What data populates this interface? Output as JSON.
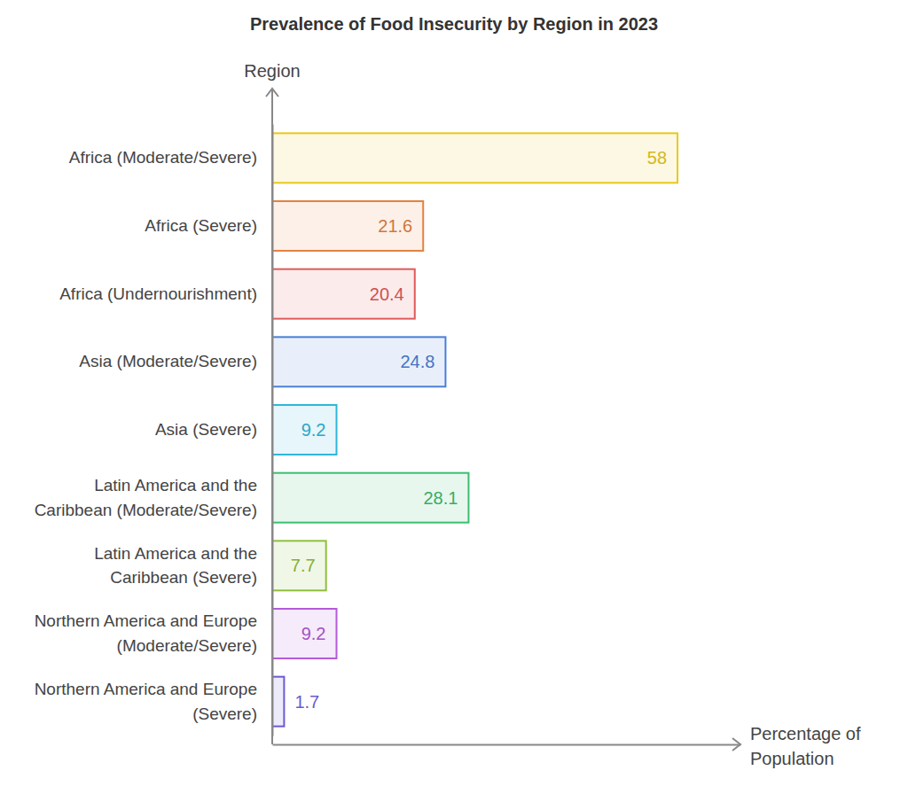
{
  "chart_data": {
    "type": "bar",
    "title": "Prevalence of Food Insecurity by Region in 2023",
    "x_label": "Percentage of Population",
    "y_label": "Region",
    "orientation": "horizontal",
    "categories": [
      "Africa (Moderate/Severe)",
      "Africa (Severe)",
      "Africa (Undernourishment)",
      "Asia (Moderate/Severe)",
      "Asia (Severe)",
      "Latin America and the Caribbean (Moderate/Severe)",
      "Latin America and the Caribbean (Severe)",
      "Northern America and Europe (Moderate/Severe)",
      "Northern America and Europe (Severe)"
    ],
    "values": [
      58,
      21.6,
      20.4,
      24.8,
      9.2,
      28.1,
      7.7,
      9.2,
      1.7
    ],
    "colors": [
      "#e8c81a",
      "#e38240",
      "#e05a5a",
      "#4a7fd6",
      "#2fb6d9",
      "#3dbd70",
      "#8fbf3c",
      "#b35ad9",
      "#6a5bd1"
    ],
    "xlim": [
      0,
      67
    ],
    "data_labels": true,
    "tick_labels": "y",
    "grid": false
  }
}
